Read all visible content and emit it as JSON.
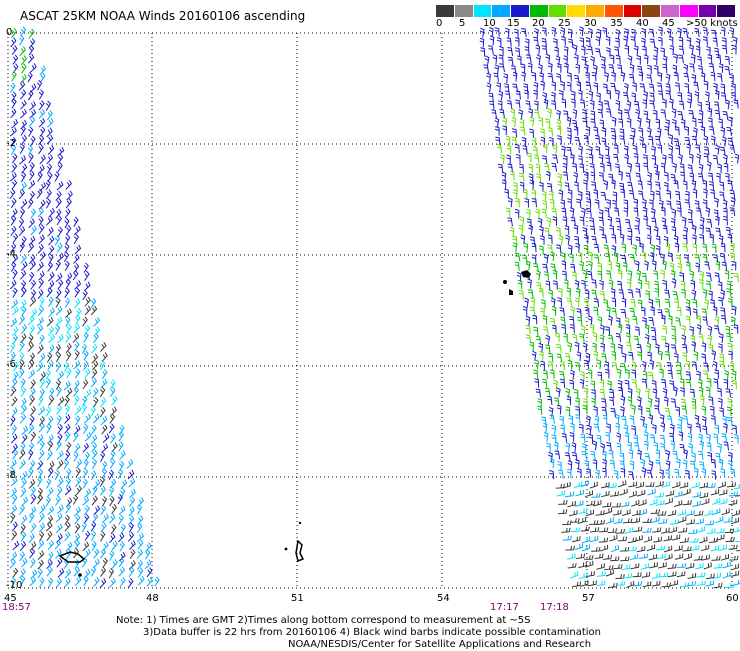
{
  "header": {
    "title": "ASCAT 25KM NOAA Winds 20160106 ascending"
  },
  "legend": {
    "colors": [
      "#3a3a3a",
      "#8a8a8a",
      "#00e5ff",
      "#00aaff",
      "#1a1acc",
      "#00bb00",
      "#66dd00",
      "#ffdd00",
      "#ffaa00",
      "#ff5500",
      "#dd0000",
      "#8b4513",
      "#cc66cc",
      "#ff00ff",
      "#7700aa",
      "#330066"
    ],
    "labels": [
      "0",
      "5",
      "10",
      "15",
      "20",
      "25",
      "30",
      "35",
      "40",
      "45",
      ">50 knots"
    ]
  },
  "axes": {
    "latitude_labels": [
      "0",
      "-2",
      "-4",
      "-6",
      "-8",
      "-10"
    ],
    "longitude_labels": [
      "45",
      "48",
      "51",
      "54",
      "57",
      "60"
    ]
  },
  "times": {
    "left": "18:57",
    "middle": "17:17",
    "right": "17:18"
  },
  "notes": {
    "line1": "Note: 1) Times are GMT 2)Times along bottom correspond to measurement at ~5S",
    "line2": "3)Data buffer is 22 hrs from 20160106 4) Black wind barbs indicate possible contamination",
    "line3": "NOAA/NESDIS/Center for Satellite Applications and Research"
  }
}
